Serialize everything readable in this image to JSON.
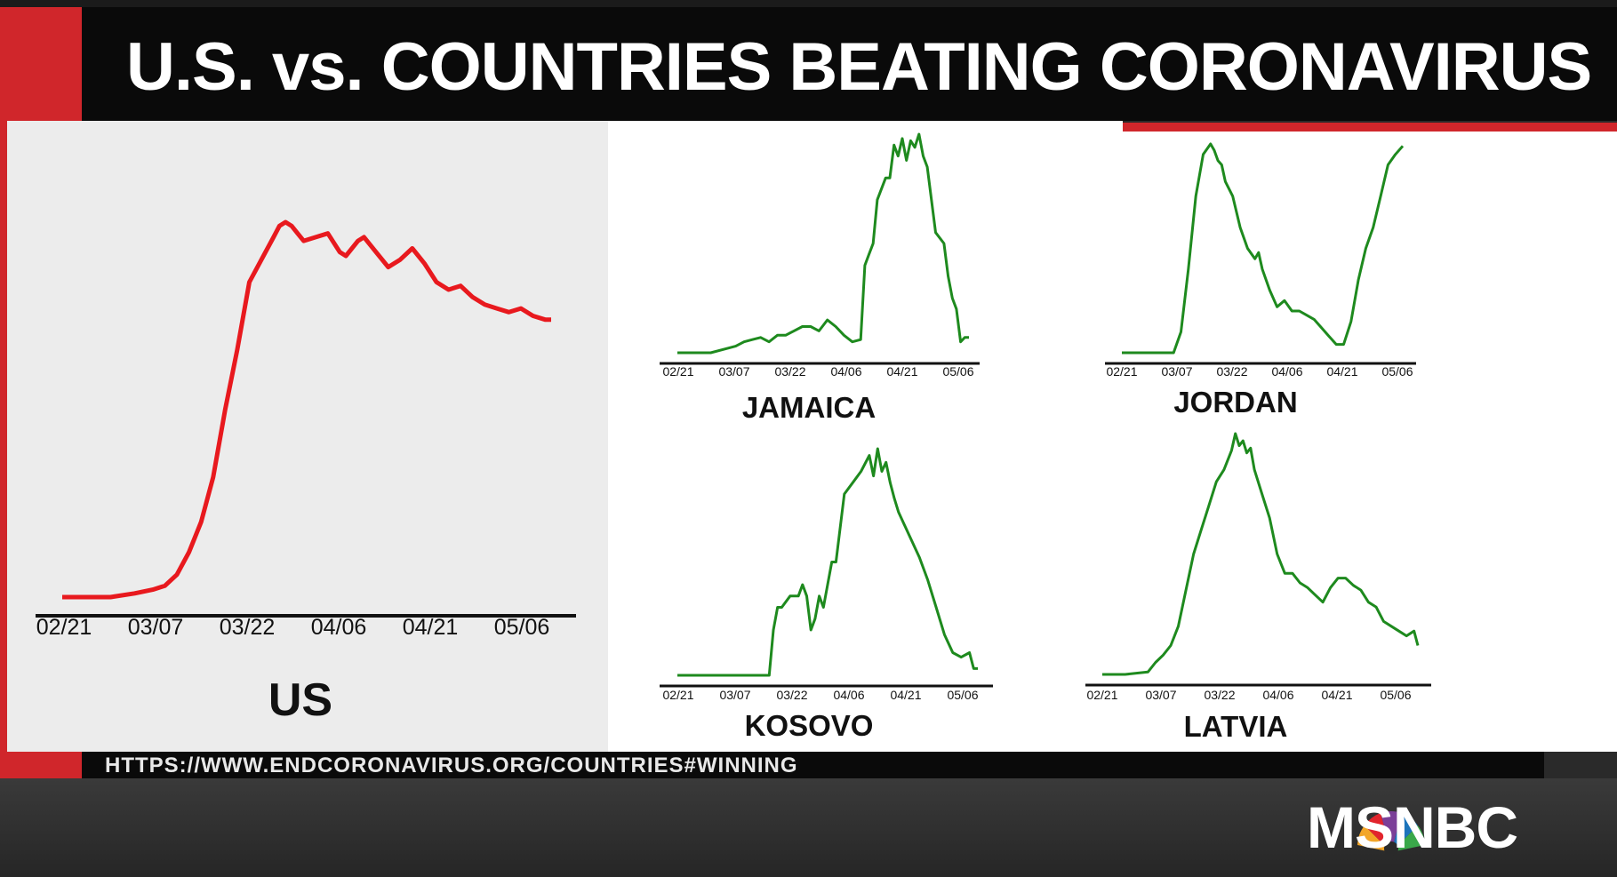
{
  "title": "U.S. vs. COUNTRIES BEATING CORONAVIRUS",
  "url": "HTTPS://WWW.ENDCORONAVIRUS.ORG/COUNTRIES#WINNING",
  "logo_text": "MSNBC",
  "colors": {
    "us_line": "#e8191e",
    "country_line": "#1e8a1e",
    "brand_red": "#d0262b"
  },
  "chart_data": [
    {
      "type": "line",
      "title": "US",
      "categories": [
        "02/21",
        "03/07",
        "03/22",
        "04/06",
        "04/21",
        "05/06"
      ],
      "x": [
        0,
        4,
        8,
        12,
        15,
        17,
        19,
        21,
        23,
        25,
        27,
        29,
        31,
        33,
        35,
        36,
        37,
        38,
        39,
        40,
        42,
        44,
        46,
        47,
        49,
        50,
        52,
        54,
        56,
        58,
        60,
        62,
        64,
        66,
        68,
        70,
        72,
        74,
        76,
        78,
        80,
        81
      ],
      "values": [
        0,
        0,
        0,
        0.01,
        0.02,
        0.03,
        0.06,
        0.12,
        0.2,
        0.32,
        0.5,
        0.66,
        0.84,
        0.9,
        0.96,
        0.99,
        1.0,
        0.99,
        0.97,
        0.95,
        0.96,
        0.97,
        0.92,
        0.91,
        0.95,
        0.96,
        0.92,
        0.88,
        0.9,
        0.93,
        0.89,
        0.84,
        0.82,
        0.83,
        0.8,
        0.78,
        0.77,
        0.76,
        0.77,
        0.75,
        0.74,
        0.74
      ],
      "color": "#e8191e"
    },
    {
      "type": "line",
      "title": "JAMAICA",
      "categories": [
        "02/21",
        "03/07",
        "03/22",
        "04/06",
        "04/21",
        "05/06"
      ],
      "x": [
        0,
        4,
        8,
        12,
        14,
        16,
        18,
        20,
        22,
        24,
        26,
        28,
        30,
        32,
        34,
        36,
        38,
        40,
        42,
        44,
        45,
        46,
        47,
        48,
        50,
        51,
        52,
        53,
        54,
        55,
        56,
        57,
        58,
        59,
        60,
        61,
        62,
        64,
        65,
        66,
        67,
        68,
        69,
        70
      ],
      "values": [
        0,
        0,
        0,
        0.02,
        0.03,
        0.05,
        0.06,
        0.07,
        0.05,
        0.08,
        0.08,
        0.1,
        0.12,
        0.12,
        0.1,
        0.15,
        0.12,
        0.08,
        0.05,
        0.06,
        0.4,
        0.45,
        0.5,
        0.7,
        0.8,
        0.8,
        0.95,
        0.9,
        0.98,
        0.88,
        0.97,
        0.94,
        1.0,
        0.9,
        0.85,
        0.7,
        0.55,
        0.5,
        0.35,
        0.25,
        0.2,
        0.05,
        0.07,
        0.07
      ],
      "color": "#1e8a1e"
    },
    {
      "type": "line",
      "title": "JORDAN",
      "categories": [
        "02/21",
        "03/07",
        "03/22",
        "04/06",
        "04/21",
        "05/06"
      ],
      "x": [
        0,
        8,
        14,
        16,
        18,
        20,
        22,
        24,
        25,
        26,
        27,
        28,
        30,
        32,
        34,
        36,
        37,
        38,
        40,
        42,
        44,
        46,
        48,
        50,
        52,
        54,
        56,
        58,
        60,
        62,
        64,
        66,
        68,
        70,
        72,
        74,
        76
      ],
      "values": [
        0,
        0,
        0,
        0.1,
        0.4,
        0.75,
        0.95,
        1.0,
        0.97,
        0.92,
        0.9,
        0.82,
        0.75,
        0.6,
        0.5,
        0.45,
        0.48,
        0.4,
        0.3,
        0.22,
        0.25,
        0.2,
        0.2,
        0.18,
        0.16,
        0.12,
        0.08,
        0.04,
        0.04,
        0.15,
        0.35,
        0.5,
        0.6,
        0.75,
        0.9,
        0.95,
        0.99
      ],
      "color": "#1e8a1e"
    },
    {
      "type": "line",
      "title": "KOSOVO",
      "categories": [
        "02/21",
        "03/07",
        "03/22",
        "04/06",
        "04/21",
        "05/06"
      ],
      "x": [
        0,
        8,
        14,
        20,
        22,
        23,
        24,
        25,
        27,
        29,
        30,
        31,
        32,
        33,
        34,
        35,
        36,
        37,
        38,
        40,
        42,
        44,
        46,
        47,
        48,
        49,
        50,
        51,
        52,
        53,
        54,
        56,
        58,
        60,
        62,
        64,
        66,
        68,
        70,
        71,
        72
      ],
      "values": [
        0,
        0,
        0,
        0,
        0,
        0.2,
        0.3,
        0.3,
        0.35,
        0.35,
        0.4,
        0.35,
        0.2,
        0.25,
        0.35,
        0.3,
        0.4,
        0.5,
        0.5,
        0.8,
        0.85,
        0.9,
        0.97,
        0.88,
        1.0,
        0.9,
        0.94,
        0.85,
        0.78,
        0.72,
        0.68,
        0.6,
        0.52,
        0.42,
        0.3,
        0.18,
        0.1,
        0.08,
        0.1,
        0.03,
        0.03
      ],
      "color": "#1e8a1e"
    },
    {
      "type": "line",
      "title": "LATVIA",
      "categories": [
        "02/21",
        "03/07",
        "03/22",
        "04/06",
        "04/21",
        "05/06"
      ],
      "x": [
        0,
        6,
        12,
        14,
        16,
        18,
        20,
        22,
        24,
        26,
        28,
        30,
        32,
        34,
        35,
        36,
        37,
        38,
        39,
        40,
        42,
        44,
        46,
        48,
        50,
        52,
        54,
        56,
        58,
        60,
        62,
        64,
        66,
        68,
        70,
        72,
        74,
        76,
        78,
        80,
        82,
        83
      ],
      "values": [
        0,
        0,
        0.01,
        0.05,
        0.08,
        0.12,
        0.2,
        0.35,
        0.5,
        0.6,
        0.7,
        0.8,
        0.85,
        0.93,
        1.0,
        0.95,
        0.97,
        0.92,
        0.94,
        0.85,
        0.75,
        0.65,
        0.5,
        0.42,
        0.42,
        0.38,
        0.36,
        0.33,
        0.3,
        0.36,
        0.4,
        0.4,
        0.37,
        0.35,
        0.3,
        0.28,
        0.22,
        0.2,
        0.18,
        0.16,
        0.18,
        0.12
      ],
      "color": "#1e8a1e"
    }
  ]
}
